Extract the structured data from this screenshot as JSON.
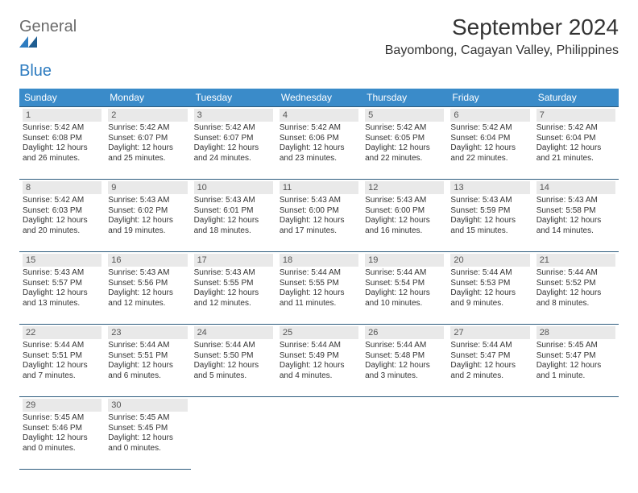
{
  "logo": {
    "word1": "General",
    "word2": "Blue"
  },
  "title": "September 2024",
  "location": "Bayombong, Cagayan Valley, Philippines",
  "colors": {
    "header_bg": "#3a8bc9",
    "header_text": "#ffffff",
    "cell_border": "#2e5c7e",
    "daynum_bg": "#e9e9e9",
    "logo_gray": "#6a6a6a",
    "logo_blue": "#2e7cc0",
    "body_text": "#333333",
    "background": "#ffffff"
  },
  "fonts": {
    "title_size": 28,
    "location_size": 16,
    "header_size": 12,
    "daynum_size": 11,
    "cell_size": 10
  },
  "weekdays": [
    "Sunday",
    "Monday",
    "Tuesday",
    "Wednesday",
    "Thursday",
    "Friday",
    "Saturday"
  ],
  "days": [
    {
      "n": 1,
      "sr": "5:42 AM",
      "ss": "6:08 PM",
      "dl": "12 hours and 26 minutes."
    },
    {
      "n": 2,
      "sr": "5:42 AM",
      "ss": "6:07 PM",
      "dl": "12 hours and 25 minutes."
    },
    {
      "n": 3,
      "sr": "5:42 AM",
      "ss": "6:07 PM",
      "dl": "12 hours and 24 minutes."
    },
    {
      "n": 4,
      "sr": "5:42 AM",
      "ss": "6:06 PM",
      "dl": "12 hours and 23 minutes."
    },
    {
      "n": 5,
      "sr": "5:42 AM",
      "ss": "6:05 PM",
      "dl": "12 hours and 22 minutes."
    },
    {
      "n": 6,
      "sr": "5:42 AM",
      "ss": "6:04 PM",
      "dl": "12 hours and 22 minutes."
    },
    {
      "n": 7,
      "sr": "5:42 AM",
      "ss": "6:04 PM",
      "dl": "12 hours and 21 minutes."
    },
    {
      "n": 8,
      "sr": "5:42 AM",
      "ss": "6:03 PM",
      "dl": "12 hours and 20 minutes."
    },
    {
      "n": 9,
      "sr": "5:43 AM",
      "ss": "6:02 PM",
      "dl": "12 hours and 19 minutes."
    },
    {
      "n": 10,
      "sr": "5:43 AM",
      "ss": "6:01 PM",
      "dl": "12 hours and 18 minutes."
    },
    {
      "n": 11,
      "sr": "5:43 AM",
      "ss": "6:00 PM",
      "dl": "12 hours and 17 minutes."
    },
    {
      "n": 12,
      "sr": "5:43 AM",
      "ss": "6:00 PM",
      "dl": "12 hours and 16 minutes."
    },
    {
      "n": 13,
      "sr": "5:43 AM",
      "ss": "5:59 PM",
      "dl": "12 hours and 15 minutes."
    },
    {
      "n": 14,
      "sr": "5:43 AM",
      "ss": "5:58 PM",
      "dl": "12 hours and 14 minutes."
    },
    {
      "n": 15,
      "sr": "5:43 AM",
      "ss": "5:57 PM",
      "dl": "12 hours and 13 minutes."
    },
    {
      "n": 16,
      "sr": "5:43 AM",
      "ss": "5:56 PM",
      "dl": "12 hours and 12 minutes."
    },
    {
      "n": 17,
      "sr": "5:43 AM",
      "ss": "5:55 PM",
      "dl": "12 hours and 12 minutes."
    },
    {
      "n": 18,
      "sr": "5:44 AM",
      "ss": "5:55 PM",
      "dl": "12 hours and 11 minutes."
    },
    {
      "n": 19,
      "sr": "5:44 AM",
      "ss": "5:54 PM",
      "dl": "12 hours and 10 minutes."
    },
    {
      "n": 20,
      "sr": "5:44 AM",
      "ss": "5:53 PM",
      "dl": "12 hours and 9 minutes."
    },
    {
      "n": 21,
      "sr": "5:44 AM",
      "ss": "5:52 PM",
      "dl": "12 hours and 8 minutes."
    },
    {
      "n": 22,
      "sr": "5:44 AM",
      "ss": "5:51 PM",
      "dl": "12 hours and 7 minutes."
    },
    {
      "n": 23,
      "sr": "5:44 AM",
      "ss": "5:51 PM",
      "dl": "12 hours and 6 minutes."
    },
    {
      "n": 24,
      "sr": "5:44 AM",
      "ss": "5:50 PM",
      "dl": "12 hours and 5 minutes."
    },
    {
      "n": 25,
      "sr": "5:44 AM",
      "ss": "5:49 PM",
      "dl": "12 hours and 4 minutes."
    },
    {
      "n": 26,
      "sr": "5:44 AM",
      "ss": "5:48 PM",
      "dl": "12 hours and 3 minutes."
    },
    {
      "n": 27,
      "sr": "5:44 AM",
      "ss": "5:47 PM",
      "dl": "12 hours and 2 minutes."
    },
    {
      "n": 28,
      "sr": "5:45 AM",
      "ss": "5:47 PM",
      "dl": "12 hours and 1 minute."
    },
    {
      "n": 29,
      "sr": "5:45 AM",
      "ss": "5:46 PM",
      "dl": "12 hours and 0 minutes."
    },
    {
      "n": 30,
      "sr": "5:45 AM",
      "ss": "5:45 PM",
      "dl": "12 hours and 0 minutes."
    }
  ],
  "labels": {
    "sunrise": "Sunrise:",
    "sunset": "Sunset:",
    "daylight": "Daylight:"
  },
  "layout": {
    "start_weekday_index": 0,
    "columns": 7
  }
}
